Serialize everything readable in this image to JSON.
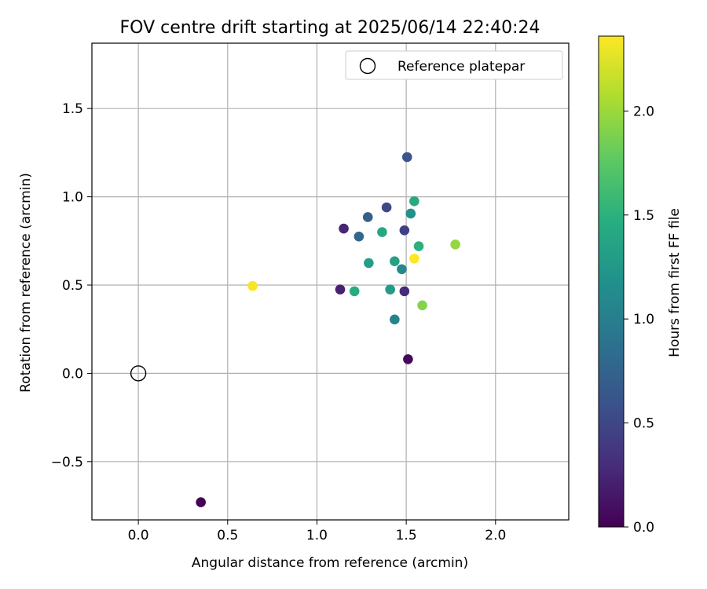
{
  "chart_data": {
    "type": "scatter",
    "title": "FOV centre drift starting at 2025/06/14 22:40:24",
    "xlabel": "Angular distance from reference (arcmin)",
    "ylabel": "Rotation from reference (arcmin)",
    "xlim": [
      -0.26,
      2.41
    ],
    "ylim": [
      -0.83,
      1.87
    ],
    "xticks": [
      0.0,
      0.5,
      1.0,
      1.5,
      2.0
    ],
    "xtick_labels": [
      "0.0",
      "0.5",
      "1.0",
      "1.5",
      "2.0"
    ],
    "yticks": [
      -0.5,
      0.0,
      0.5,
      1.0,
      1.5
    ],
    "ytick_labels": [
      "−0.5",
      "0.0",
      "0.5",
      "1.0",
      "1.5"
    ],
    "grid": true,
    "legend": {
      "placement": "top-right",
      "entries": [
        "Reference platepar"
      ]
    },
    "reference_point": {
      "x": 0.0,
      "y": 0.0,
      "marker": "hollow-circle",
      "color": "#000000"
    },
    "colorbar": {
      "label": "Hours from first FF file",
      "colormap": "viridis",
      "range": [
        0.0,
        2.36
      ],
      "ticks": [
        0.0,
        0.5,
        1.0,
        1.5,
        2.0
      ],
      "tick_labels": [
        "0.0",
        "0.5",
        "1.0",
        "1.5",
        "2.0"
      ]
    },
    "points": [
      {
        "x": 0.35,
        "y": -0.73,
        "hours": 0.0
      },
      {
        "x": 1.51,
        "y": 0.08,
        "hours": 0.05
      },
      {
        "x": 1.13,
        "y": 0.475,
        "hours": 0.22
      },
      {
        "x": 1.15,
        "y": 0.82,
        "hours": 0.25
      },
      {
        "x": 1.49,
        "y": 0.465,
        "hours": 0.28
      },
      {
        "x": 1.49,
        "y": 0.81,
        "hours": 0.45
      },
      {
        "x": 1.39,
        "y": 0.94,
        "hours": 0.52
      },
      {
        "x": 1.505,
        "y": 1.225,
        "hours": 0.62
      },
      {
        "x": 1.285,
        "y": 0.885,
        "hours": 0.72
      },
      {
        "x": 1.235,
        "y": 0.775,
        "hours": 0.8
      },
      {
        "x": 1.435,
        "y": 0.305,
        "hours": 1.05
      },
      {
        "x": 1.475,
        "y": 0.59,
        "hours": 1.1
      },
      {
        "x": 1.525,
        "y": 0.905,
        "hours": 1.18
      },
      {
        "x": 1.41,
        "y": 0.475,
        "hours": 1.28
      },
      {
        "x": 1.29,
        "y": 0.625,
        "hours": 1.32
      },
      {
        "x": 1.435,
        "y": 0.635,
        "hours": 1.35
      },
      {
        "x": 1.365,
        "y": 0.8,
        "hours": 1.4
      },
      {
        "x": 1.21,
        "y": 0.465,
        "hours": 1.45
      },
      {
        "x": 1.545,
        "y": 0.975,
        "hours": 1.42
      },
      {
        "x": 1.57,
        "y": 0.72,
        "hours": 1.5
      },
      {
        "x": 1.59,
        "y": 0.385,
        "hours": 1.92
      },
      {
        "x": 1.775,
        "y": 0.73,
        "hours": 1.97
      },
      {
        "x": 0.64,
        "y": 0.495,
        "hours": 2.34
      },
      {
        "x": 1.545,
        "y": 0.65,
        "hours": 2.36
      }
    ]
  }
}
